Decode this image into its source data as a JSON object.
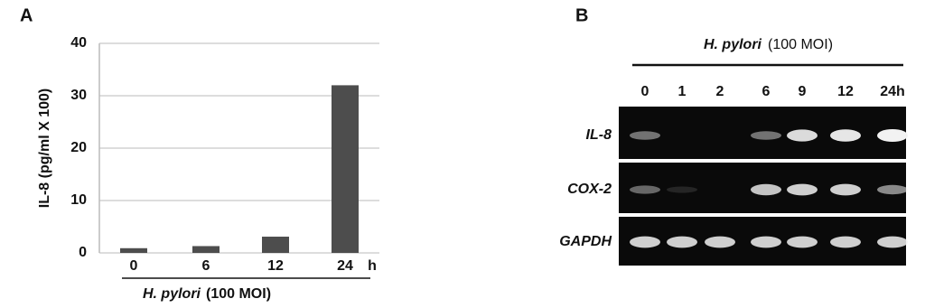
{
  "chart_data": {
    "type": "bar",
    "panel_label": "A",
    "ylabel": "IL-8 (pg/ml X 100)",
    "categories": [
      "0",
      "6",
      "12",
      "24"
    ],
    "x_unit": "h",
    "xlabel": [
      "H. pylori",
      "(100 MOI)"
    ],
    "values": [
      0.9,
      1.3,
      3.1,
      32
    ],
    "color": "#4d4d4d",
    "ylim": [
      0,
      40
    ],
    "yticks": [
      0,
      10,
      20,
      30,
      40
    ],
    "grid": true
  },
  "panel_b": {
    "panel_label": "B",
    "title": [
      "H. pylori",
      "(100 MOI)"
    ],
    "lanes": [
      "0",
      "1",
      "2",
      "6",
      "9",
      "12",
      "24h"
    ],
    "rows": [
      "IL-8",
      "COX-2",
      "GAPDH"
    ]
  }
}
